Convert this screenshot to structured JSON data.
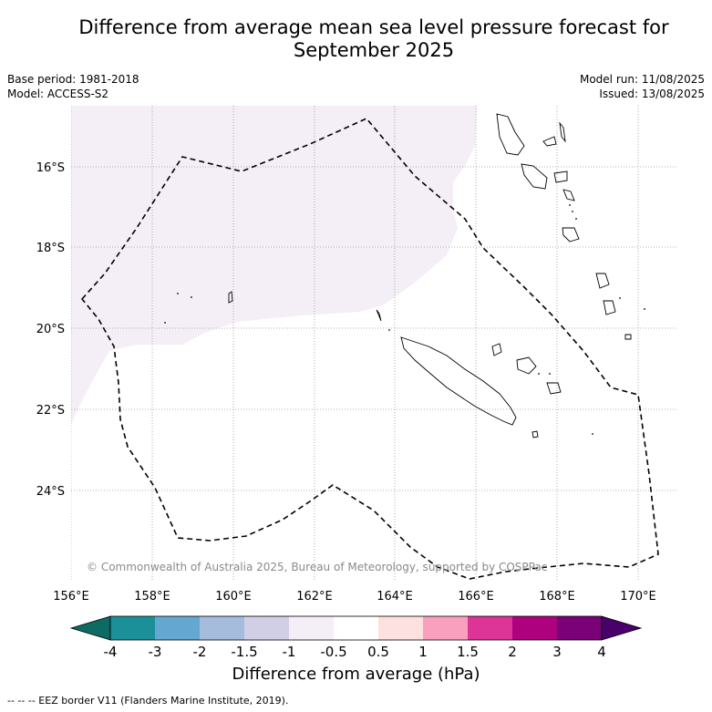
{
  "title_line1": "Difference from average mean sea level pressure forecast for",
  "title_line2": "September 2025",
  "meta": {
    "base_period": "Base period: 1981-2018",
    "model": "Model: ACCESS-S2",
    "model_run": "Model run: 11/08/2025",
    "issued": "Issued: 13/08/2025"
  },
  "map": {
    "lon_ticks": [
      "156°E",
      "158°E",
      "160°E",
      "162°E",
      "164°E",
      "166°E",
      "168°E",
      "170°E"
    ],
    "lat_ticks": [
      "16°S",
      "18°S",
      "20°S",
      "22°S",
      "24°S"
    ],
    "copyright": "© Commonwealth of Australia 2025, Bureau of Meteorology, supported by COSPPac",
    "anomaly_fill_color": "#f4eef6",
    "eez_line_color": "#000000"
  },
  "colorbar": {
    "title": "Difference from average (hPa)",
    "labels": [
      "-4",
      "-3",
      "-2",
      "-1.5",
      "-1",
      "-0.5",
      "0.5",
      "1",
      "1.5",
      "2",
      "3",
      "4"
    ],
    "under_color": "#0d6b63",
    "colors": [
      "#1b9098",
      "#64a8d2",
      "#a6bcdc",
      "#d0cfe6",
      "#f4eef6",
      "#ffffff",
      "#fde0e0",
      "#f9a0bf",
      "#dd3597",
      "#ad017e",
      "#7a0177"
    ],
    "over_color": "#4a006a"
  },
  "footer": "--  --  -- EEZ border V11 (Flanders Marine Institute, 2019)."
}
